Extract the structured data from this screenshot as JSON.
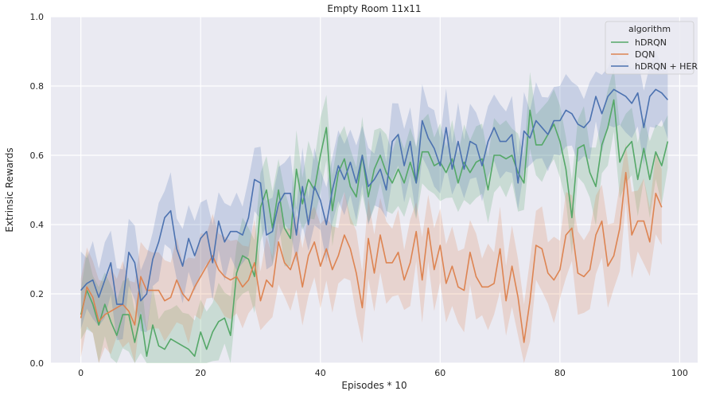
{
  "chart_data": {
    "type": "line",
    "title": "Empty Room 11x11",
    "xlabel": "Episodes * 10",
    "ylabel": "Extrinsic Rewards",
    "xlim": [
      -5,
      103
    ],
    "ylim": [
      0,
      1.0
    ],
    "xticks": [
      0,
      20,
      40,
      60,
      80,
      100
    ],
    "yticks": [
      0.0,
      0.2,
      0.4,
      0.6,
      0.8,
      1.0
    ],
    "grid": true,
    "legend": {
      "title": "algorithm",
      "position": "top-right"
    },
    "series": [
      {
        "name": "hDRQN",
        "color": "#55a868",
        "values": [
          0.14,
          0.21,
          0.17,
          0.11,
          0.17,
          0.12,
          0.08,
          0.14,
          0.14,
          0.06,
          0.14,
          0.02,
          0.11,
          0.05,
          0.04,
          0.07,
          0.06,
          0.05,
          0.04,
          0.02,
          0.09,
          0.04,
          0.09,
          0.12,
          0.13,
          0.08,
          0.26,
          0.31,
          0.3,
          0.25,
          0.45,
          0.5,
          0.39,
          0.5,
          0.39,
          0.36,
          0.56,
          0.46,
          0.53,
          0.5,
          0.6,
          0.68,
          0.44,
          0.55,
          0.59,
          0.51,
          0.48,
          0.6,
          0.48,
          0.56,
          0.6,
          0.55,
          0.52,
          0.56,
          0.52,
          0.58,
          0.52,
          0.61,
          0.61,
          0.57,
          0.58,
          0.55,
          0.59,
          0.52,
          0.58,
          0.55,
          0.58,
          0.59,
          0.5,
          0.6,
          0.6,
          0.59,
          0.6,
          0.55,
          0.52,
          0.73,
          0.63,
          0.63,
          0.66,
          0.69,
          0.64,
          0.56,
          0.42,
          0.62,
          0.63,
          0.55,
          0.51,
          0.63,
          0.68,
          0.76,
          0.58,
          0.62,
          0.64,
          0.53,
          0.62,
          0.53,
          0.61,
          0.57,
          0.64
        ]
      },
      {
        "name": "DQN",
        "color": "#dd8452",
        "values": [
          0.13,
          0.22,
          0.19,
          0.12,
          0.14,
          0.15,
          0.16,
          0.17,
          0.15,
          0.11,
          0.25,
          0.21,
          0.21,
          0.21,
          0.18,
          0.19,
          0.24,
          0.2,
          0.18,
          0.22,
          0.25,
          0.28,
          0.31,
          0.27,
          0.25,
          0.24,
          0.25,
          0.22,
          0.24,
          0.29,
          0.18,
          0.24,
          0.22,
          0.35,
          0.29,
          0.27,
          0.32,
          0.22,
          0.31,
          0.35,
          0.28,
          0.33,
          0.27,
          0.31,
          0.37,
          0.33,
          0.26,
          0.16,
          0.36,
          0.26,
          0.37,
          0.29,
          0.29,
          0.32,
          0.24,
          0.29,
          0.38,
          0.24,
          0.39,
          0.27,
          0.34,
          0.23,
          0.28,
          0.22,
          0.21,
          0.32,
          0.25,
          0.22,
          0.22,
          0.23,
          0.33,
          0.18,
          0.28,
          0.19,
          0.06,
          0.18,
          0.34,
          0.33,
          0.26,
          0.24,
          0.27,
          0.37,
          0.39,
          0.26,
          0.25,
          0.27,
          0.37,
          0.41,
          0.28,
          0.31,
          0.39,
          0.55,
          0.37,
          0.41,
          0.41,
          0.35,
          0.49,
          0.45
        ]
      },
      {
        "name": "hDRQN + HER",
        "color": "#4c72b0",
        "values": [
          0.21,
          0.23,
          0.24,
          0.19,
          0.24,
          0.29,
          0.17,
          0.17,
          0.32,
          0.29,
          0.18,
          0.2,
          0.3,
          0.35,
          0.42,
          0.44,
          0.33,
          0.28,
          0.36,
          0.31,
          0.36,
          0.38,
          0.29,
          0.41,
          0.35,
          0.38,
          0.38,
          0.37,
          0.42,
          0.53,
          0.52,
          0.37,
          0.38,
          0.46,
          0.49,
          0.49,
          0.37,
          0.51,
          0.4,
          0.51,
          0.47,
          0.4,
          0.5,
          0.57,
          0.53,
          0.58,
          0.52,
          0.6,
          0.51,
          0.53,
          0.56,
          0.5,
          0.64,
          0.66,
          0.57,
          0.64,
          0.52,
          0.7,
          0.65,
          0.62,
          0.57,
          0.68,
          0.56,
          0.64,
          0.56,
          0.64,
          0.63,
          0.57,
          0.64,
          0.68,
          0.64,
          0.64,
          0.66,
          0.52,
          0.67,
          0.65,
          0.7,
          0.68,
          0.66,
          0.7,
          0.7,
          0.73,
          0.72,
          0.69,
          0.68,
          0.7,
          0.77,
          0.72,
          0.77,
          0.79,
          0.78,
          0.77,
          0.75,
          0.78,
          0.68,
          0.77,
          0.79,
          0.78,
          0.76
        ]
      }
    ]
  }
}
